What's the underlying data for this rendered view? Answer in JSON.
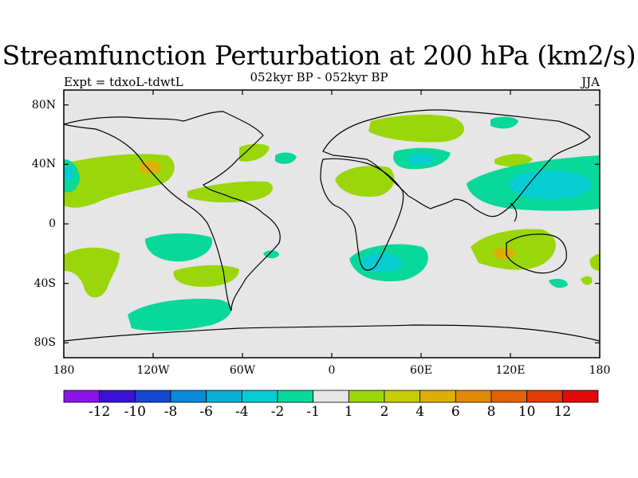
{
  "title": "Streamfunction Perturbation at 200 hPa (km2/s)",
  "subtitle": "052kyr BP - 052kyr BP",
  "left_label": "Expt = tdxoL-tdwtL",
  "right_label": "JJA",
  "lat_ticks": [
    "80N",
    "40N",
    "0",
    "40S",
    "80S"
  ],
  "lon_ticks": [
    "180",
    "120W",
    "60W",
    "0",
    "60E",
    "120E",
    "180"
  ],
  "colorbar": {
    "colors": [
      "#8a14e6",
      "#3a12d6",
      "#1446d2",
      "#0a8ad8",
      "#08aed6",
      "#06cdd2",
      "#08d89a",
      "#e6e6e6",
      "#9ad60a",
      "#c8cc08",
      "#dcb008",
      "#e08a08",
      "#e26208",
      "#e23a08",
      "#e00a08"
    ],
    "labels": [
      "-12",
      "-10",
      "-8",
      "-6",
      "-4",
      "-2",
      "-1",
      "1",
      "2",
      "4",
      "6",
      "8",
      "10",
      "12"
    ]
  }
}
